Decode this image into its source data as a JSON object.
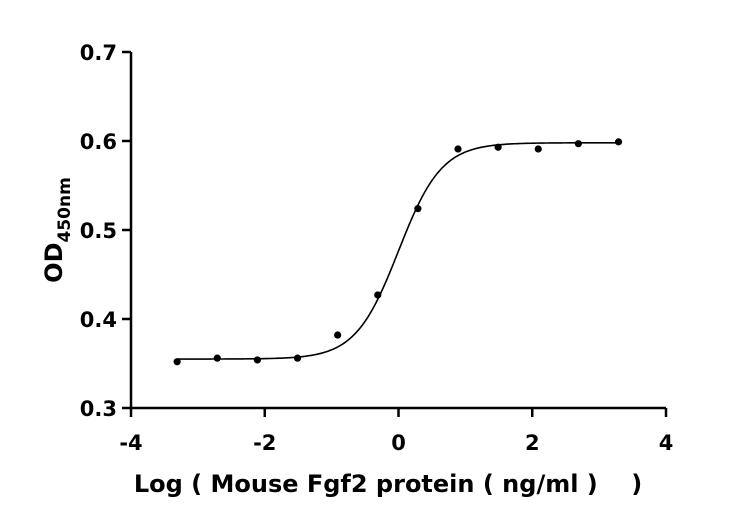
{
  "chart_data": {
    "type": "scatter",
    "xlabel": "Log ( Mouse Fgf2 protein ( ng/ml )    )",
    "ylabel_main": "OD",
    "ylabel_sub": "450nm",
    "xlim": [
      -4,
      4
    ],
    "ylim": [
      0.3,
      0.7
    ],
    "xticks": [
      -4,
      -2,
      0,
      2,
      4
    ],
    "yticks": [
      0.3,
      0.4,
      0.5,
      0.6,
      0.7
    ],
    "xtick_labels": [
      "-4",
      "-2",
      "0",
      "2",
      "4"
    ],
    "ytick_labels": [
      "0.3",
      "0.4",
      "0.5",
      "0.6",
      "0.7"
    ],
    "grid": false,
    "points": {
      "x": [
        -3.31,
        -2.71,
        -2.11,
        -1.51,
        -0.91,
        -0.31,
        0.29,
        0.89,
        1.49,
        2.09,
        2.69,
        3.29
      ],
      "y": [
        0.352,
        0.356,
        0.354,
        0.356,
        0.382,
        0.427,
        0.524,
        0.591,
        0.593,
        0.591,
        0.597,
        0.599
      ]
    },
    "fit_curve": {
      "model": "four-parameter logistic",
      "bottom": 0.355,
      "top": 0.598,
      "log_ec50": 0.0,
      "hill_slope": 1.35
    }
  }
}
